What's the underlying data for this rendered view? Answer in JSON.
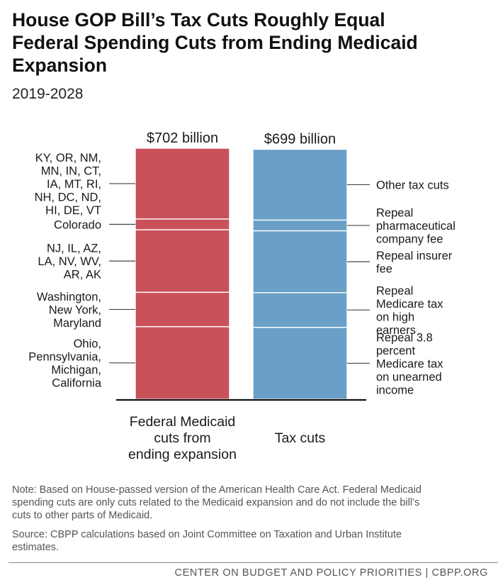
{
  "title_lines": [
    "House GOP Bill’s Tax Cuts Roughly Equal",
    "Federal Spending Cuts from Ending Medicaid",
    "Expansion"
  ],
  "subtitle": "2019-2028",
  "chart_data": {
    "type": "bar",
    "stacked": true,
    "title": "House GOP Bill’s Tax Cuts Roughly Equal Federal Spending Cuts from Ending Medicaid Expansion",
    "subtitle": "2019-2028",
    "unit": "billion dollars",
    "ylim": [
      0,
      702
    ],
    "grid": false,
    "bars": [
      {
        "category_lines": [
          "Federal Medicaid",
          "cuts from",
          "ending expansion"
        ],
        "total": 702,
        "total_label": "$702 billion",
        "color": "#c9515a",
        "segments": [
          {
            "label_lines": [
              "Ohio,",
              "Pennsylvania,",
              "Michigan,",
              "California"
            ],
            "value": 203
          },
          {
            "label_lines": [
              "Washington,",
              "New York,",
              "Maryland"
            ],
            "value": 96
          },
          {
            "label_lines": [
              "NJ, IL, AZ,",
              "LA, NV, WV,",
              "AR, AK"
            ],
            "value": 175
          },
          {
            "label_lines": [
              "Colorado"
            ],
            "value": 30
          },
          {
            "label_lines": [
              "KY, OR, NM,",
              "MN, IN, CT,",
              "IA, MT, RI,",
              "NH, DC, ND,",
              "HI, DE, VT"
            ],
            "value": 198
          }
        ]
      },
      {
        "category_lines": [
          "Tax cuts"
        ],
        "total": 699,
        "total_label": "$699 billion",
        "color": "#6a9fc8",
        "segments": [
          {
            "label_lines": [
              "Repeal 3.8",
              "percent",
              "Medicare tax",
              "on unearned",
              "income"
            ],
            "value": 201
          },
          {
            "label_lines": [
              "Repeal",
              "Medicare tax",
              "on high",
              "earners"
            ],
            "value": 97
          },
          {
            "label_lines": [
              "Repeal insurer",
              "fee"
            ],
            "value": 173
          },
          {
            "label_lines": [
              "Repeal",
              "pharmaceutical",
              "company fee"
            ],
            "value": 30
          },
          {
            "label_lines": [
              "Other tax cuts"
            ],
            "value": 198
          }
        ]
      }
    ]
  },
  "note_lines": [
    "Note: Based on House-passed version of the American Health Care Act.  Federal Medicaid",
    "spending cuts are only cuts related to the Medicaid expansion and do not include the bill’s",
    "cuts to other parts of Medicaid."
  ],
  "source_lines": [
    "Source: CBPP calculations based on Joint Committee on Taxation and Urban Institute",
    "estimates."
  ],
  "footer": "CENTER ON BUDGET AND POLICY PRIORITIES | CBPP.ORG"
}
